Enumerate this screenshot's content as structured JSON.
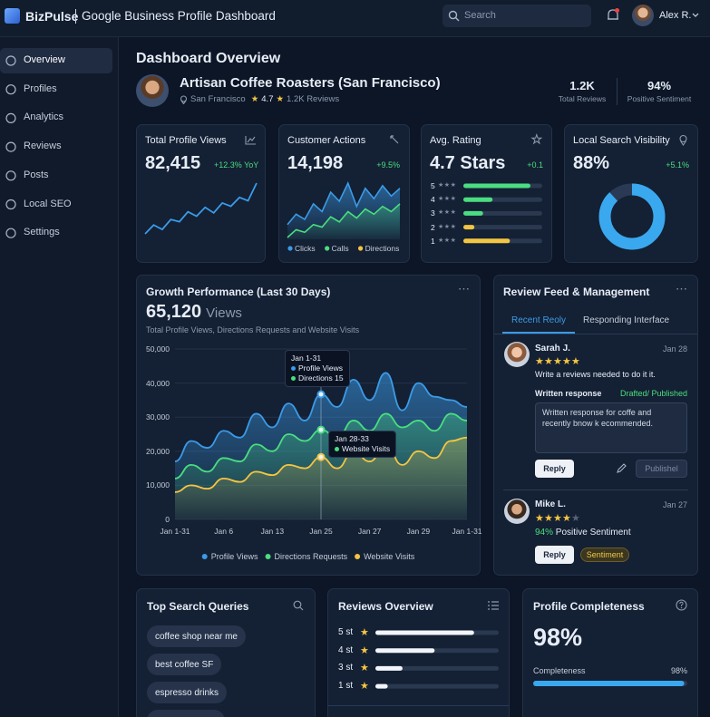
{
  "header": {
    "brand": "BizPulse",
    "title": "Google Business Profile Dashboard",
    "search_placeholder": "Search",
    "user": "Alex R."
  },
  "sidebar": {
    "items": [
      "Overview",
      "Profiles",
      "Analytics",
      "Reviews",
      "Posts",
      "Local SEO",
      "Settings"
    ],
    "active": 0
  },
  "page_title": "Dashboard Overview",
  "business": {
    "name": "Artisan Coffee Roasters (San Francisco)",
    "location": "San Francisco",
    "rating": "4.7",
    "reviews": "1.2K Reviews",
    "stats": [
      {
        "value": "1.2K",
        "label": "Total Reviews"
      },
      {
        "value": "94%",
        "label": "Positive Sentiment"
      }
    ]
  },
  "kpis": {
    "profile_views": {
      "title": "Total Profile Views",
      "value": "82,415",
      "change": "+12.3% YoY",
      "color": "#3b9be8",
      "trend": [
        22,
        30,
        26,
        35,
        33,
        42,
        38,
        46,
        41,
        50,
        47,
        55,
        52,
        68
      ]
    },
    "customer_actions": {
      "title": "Customer Actions",
      "value": "14,198",
      "change": "+9.5%",
      "series": [
        {
          "name": "Clicks",
          "color": "#3b9be8",
          "values": [
            30,
            38,
            34,
            46,
            40,
            55,
            48,
            62,
            44,
            58,
            50,
            60,
            52,
            58
          ]
        },
        {
          "name": "Calls",
          "color": "#4ade80",
          "values": [
            20,
            26,
            24,
            30,
            28,
            36,
            32,
            40,
            35,
            42,
            38,
            44,
            40,
            46
          ]
        },
        {
          "name": "Directions",
          "color": "#f4c542"
        }
      ]
    },
    "avg_rating": {
      "title": "Avg. Rating",
      "value": "4.7 Stars",
      "change": "+0.1",
      "distribution": {
        "categories": [
          "5",
          "4",
          "3",
          "2",
          "1"
        ],
        "values": [
          85,
          37,
          25,
          14,
          59
        ],
        "colors": [
          "#4ade80",
          "#4ade80",
          "#4ade80",
          "#f4c542",
          "#f4c542"
        ]
      }
    },
    "local_visibility": {
      "title": "Local Search Visibility",
      "value": 88,
      "value_label": "88%",
      "change": "+5.1%",
      "color": "#3aa8ef"
    }
  },
  "chart_data": {
    "type": "area",
    "title": "Growth Performance (Last 30 Days)",
    "headline": "65,120",
    "headline_unit": "Views",
    "subtitle": "Total Profile Views, Directions Requests and Website Visits",
    "categories": [
      "Jan 1-31",
      null,
      null,
      "Jan 6",
      null,
      null,
      "Jan 13",
      null,
      null,
      "Jan 25",
      null,
      null,
      "Jan 27",
      null,
      null,
      "Jan 29",
      null,
      null,
      "Jan 1-31"
    ],
    "series": [
      {
        "name": "Profile Views",
        "color": "#3b9be8",
        "values": [
          17000,
          23000,
          21000,
          26000,
          24000,
          31000,
          27000,
          34000,
          29000,
          36700,
          33000,
          41000,
          35000,
          43000,
          32000,
          40000,
          36000,
          35000,
          33000
        ]
      },
      {
        "name": "Directions Requests",
        "color": "#4ade80",
        "values": [
          12000,
          16000,
          14000,
          18000,
          17000,
          22000,
          20000,
          25000,
          23000,
          26300,
          24000,
          29000,
          26000,
          31000,
          27000,
          29000,
          26000,
          31000,
          29000
        ]
      },
      {
        "name": "Website Visits",
        "color": "#f4c542",
        "values": [
          8000,
          10000,
          9000,
          12000,
          11000,
          14000,
          13000,
          16000,
          15000,
          18300,
          15000,
          20000,
          17000,
          22000,
          16000,
          20000,
          18000,
          23000,
          24000
        ]
      }
    ],
    "ylim": [
      0,
      50000
    ],
    "yticks": [
      0,
      {
        "value": 10000,
        "label": "10,000"
      },
      {
        "value": 20000,
        "label": "20,000"
      },
      {
        "value": 30000,
        "label": "30,000"
      },
      {
        "value": 40000,
        "label": "40,000"
      },
      {
        "value": 50000,
        "label": "50,000"
      }
    ],
    "grid": true,
    "tooltips": [
      {
        "title": "Jan 1-31",
        "lines": [
          "Profile Views",
          "Directions 15"
        ]
      },
      {
        "title": "Jan 28-33",
        "lines": [
          "Website Visits"
        ]
      }
    ]
  },
  "reviews": {
    "title": "Review Feed & Management",
    "tabs": [
      "Recent Reoly",
      "Responding Interface"
    ],
    "items": [
      {
        "name": "Sarah J.",
        "date": "Jan 28",
        "stars": 5,
        "text": "Write a reviews needed to do it it.",
        "response_label": "Written response",
        "status": "Drafted/ Published",
        "response": "Written response for coffe and recently bnow k ecommended.",
        "buttons": [
          "Reply",
          "Publishel"
        ]
      },
      {
        "name": "Mike L.",
        "date": "Jan 27",
        "stars": 4,
        "sentiment_value": "94%",
        "sentiment_label": "Positive Sentiment",
        "buttons": [
          "Reply",
          "Sentiment"
        ]
      }
    ]
  },
  "search_queries": {
    "title": "Top Search Queries",
    "items": [
      "coffee shop near me",
      "best coffee SF",
      "espresso drinks"
    ]
  },
  "reviews_overview": {
    "title": "Reviews Overview",
    "categories": [
      "5 st",
      "4 st",
      "3 st",
      "1 st"
    ],
    "values": [
      80,
      48,
      22,
      10
    ]
  },
  "profile_completeness": {
    "title": "Profile Completeness",
    "value": 98,
    "value_label": "98%",
    "bar_label": "Completeness",
    "color": "#3aa8ef"
  }
}
